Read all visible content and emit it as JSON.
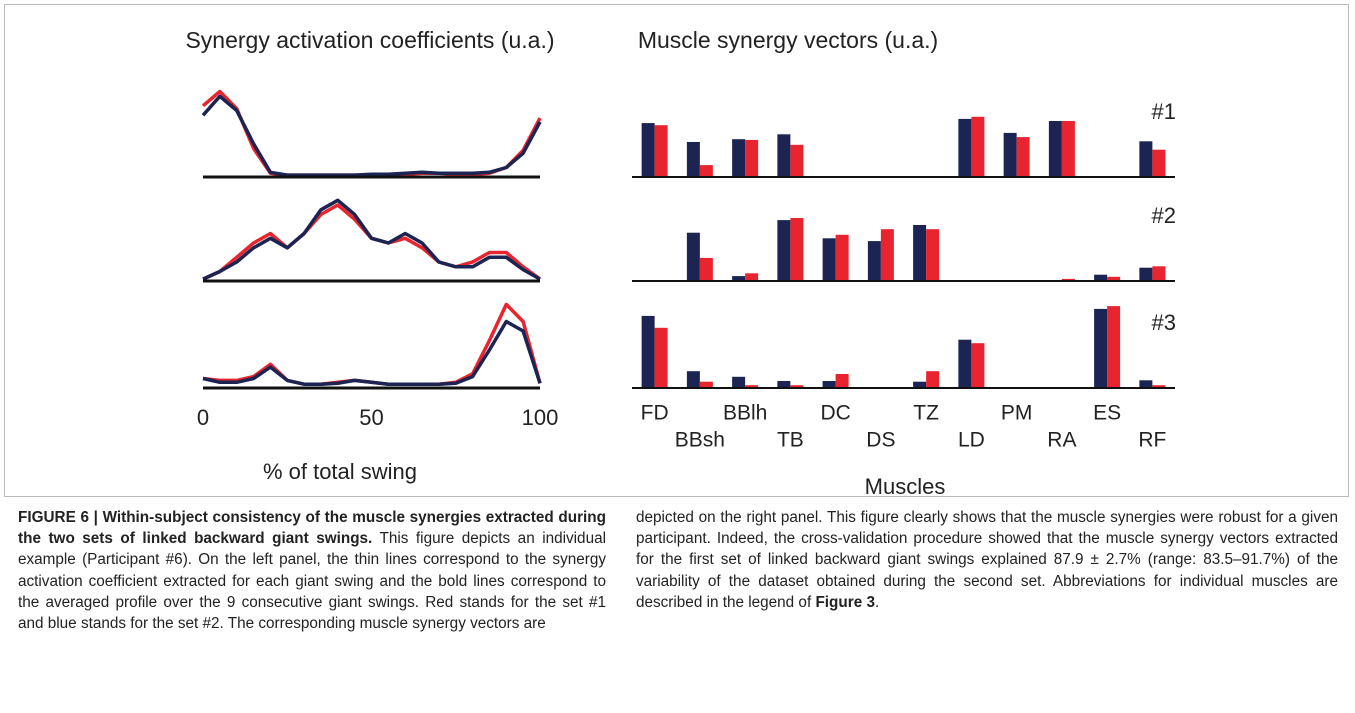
{
  "chart_data": [
    {
      "type": "line",
      "title": "Synergy activation coefficients (u.a.)",
      "xlabel": "% of total swing",
      "x": [
        0,
        5,
        10,
        15,
        20,
        25,
        30,
        35,
        40,
        45,
        50,
        55,
        60,
        65,
        70,
        75,
        80,
        85,
        90,
        95,
        100
      ],
      "xlim": [
        0,
        100
      ],
      "xticks": [
        0,
        50,
        100
      ],
      "ylim": [
        0,
        1
      ],
      "panels": [
        {
          "series": [
            {
              "color": "#e8252e",
              "values": [
                0.75,
                0.9,
                0.72,
                0.3,
                0.04,
                0.02,
                0.02,
                0.02,
                0.02,
                0.02,
                0.02,
                0.03,
                0.03,
                0.04,
                0.04,
                0.03,
                0.03,
                0.04,
                0.1,
                0.28,
                0.62
              ]
            },
            {
              "color": "#1b2452",
              "values": [
                0.65,
                0.85,
                0.7,
                0.35,
                0.05,
                0.02,
                0.02,
                0.02,
                0.02,
                0.02,
                0.03,
                0.03,
                0.04,
                0.05,
                0.04,
                0.04,
                0.04,
                0.05,
                0.1,
                0.25,
                0.58
              ]
            }
          ]
        },
        {
          "series": [
            {
              "color": "#e8252e",
              "values": [
                0.02,
                0.1,
                0.25,
                0.4,
                0.5,
                0.35,
                0.5,
                0.7,
                0.8,
                0.65,
                0.45,
                0.4,
                0.45,
                0.35,
                0.2,
                0.15,
                0.2,
                0.3,
                0.3,
                0.15,
                0.02
              ]
            },
            {
              "color": "#1b2452",
              "values": [
                0.02,
                0.1,
                0.2,
                0.35,
                0.45,
                0.35,
                0.5,
                0.75,
                0.85,
                0.7,
                0.45,
                0.4,
                0.5,
                0.4,
                0.2,
                0.15,
                0.15,
                0.25,
                0.25,
                0.12,
                0.02
              ]
            }
          ]
        },
        {
          "series": [
            {
              "color": "#e8252e",
              "values": [
                0.1,
                0.08,
                0.08,
                0.12,
                0.25,
                0.08,
                0.04,
                0.04,
                0.06,
                0.08,
                0.06,
                0.04,
                0.04,
                0.04,
                0.04,
                0.06,
                0.15,
                0.5,
                0.88,
                0.7,
                0.05
              ]
            },
            {
              "color": "#1b2452",
              "values": [
                0.1,
                0.06,
                0.06,
                0.1,
                0.22,
                0.08,
                0.04,
                0.04,
                0.05,
                0.08,
                0.06,
                0.04,
                0.04,
                0.04,
                0.04,
                0.05,
                0.12,
                0.4,
                0.7,
                0.6,
                0.05
              ]
            }
          ]
        }
      ]
    },
    {
      "type": "bar",
      "title": "Muscle synergy vectors (u.a.)",
      "xlabel": "Muscles",
      "categories": [
        "FD",
        "BBsh",
        "BBlh",
        "TB",
        "DC",
        "DS",
        "TZ",
        "LD",
        "PM",
        "RA",
        "ES",
        "RF"
      ],
      "ylim": [
        0,
        1.2
      ],
      "panels": [
        {
          "label": "#1",
          "series": [
            {
              "color": "#1b2452",
              "values": [
                0.77,
                0.5,
                0.54,
                0.61,
                0,
                0,
                0,
                0.83,
                0.63,
                0.8,
                0,
                0.51
              ]
            },
            {
              "color": "#e8252e",
              "values": [
                0.74,
                0.17,
                0.53,
                0.46,
                0,
                0,
                0,
                0.86,
                0.57,
                0.8,
                0,
                0.39
              ]
            }
          ]
        },
        {
          "label": "#2",
          "series": [
            {
              "color": "#1b2452",
              "values": [
                0,
                0.69,
                0.07,
                0.87,
                0.61,
                0.57,
                0.8,
                0,
                0,
                0,
                0.09,
                0.19
              ]
            },
            {
              "color": "#e8252e",
              "values": [
                0,
                0.33,
                0.11,
                0.9,
                0.66,
                0.74,
                0.74,
                0,
                0,
                0.03,
                0.06,
                0.21
              ]
            }
          ]
        },
        {
          "label": "#3",
          "series": [
            {
              "color": "#1b2452",
              "values": [
                1.03,
                0.24,
                0.16,
                0.1,
                0.1,
                0,
                0.09,
                0.69,
                0,
                0,
                1.13,
                0.11
              ]
            },
            {
              "color": "#e8252e",
              "values": [
                0.86,
                0.09,
                0.04,
                0.04,
                0.2,
                0,
                0.24,
                0.64,
                0,
                0,
                1.17,
                0.04
              ]
            }
          ]
        }
      ]
    }
  ],
  "caption": {
    "title": "FIGURE 6 | Within-subject consistency of the muscle synergies extracted during the two sets of linked backward giant swings.",
    "body_left": "This figure depicts an individual example (Participant #6). On the left panel, the thin lines correspond to the synergy activation coefficient extracted for each giant swing and the bold lines correspond to the averaged profile over the 9 consecutive giant swings. Red stands for the set #1 and blue stands for the set #2. The corresponding muscle synergy vectors are",
    "body_right": "depicted on the right panel. This figure clearly shows that the muscle synergies were robust for a given participant. Indeed, the cross-validation procedure showed that the muscle synergy vectors extracted for the first set of linked backward giant swings explained 87.9 ± 2.7% (range: 83.5–91.7%) of the variability of the dataset obtained during the second set. Abbreviations for individual muscles are described in the legend of",
    "ref": "Figure 3",
    "end": "."
  }
}
